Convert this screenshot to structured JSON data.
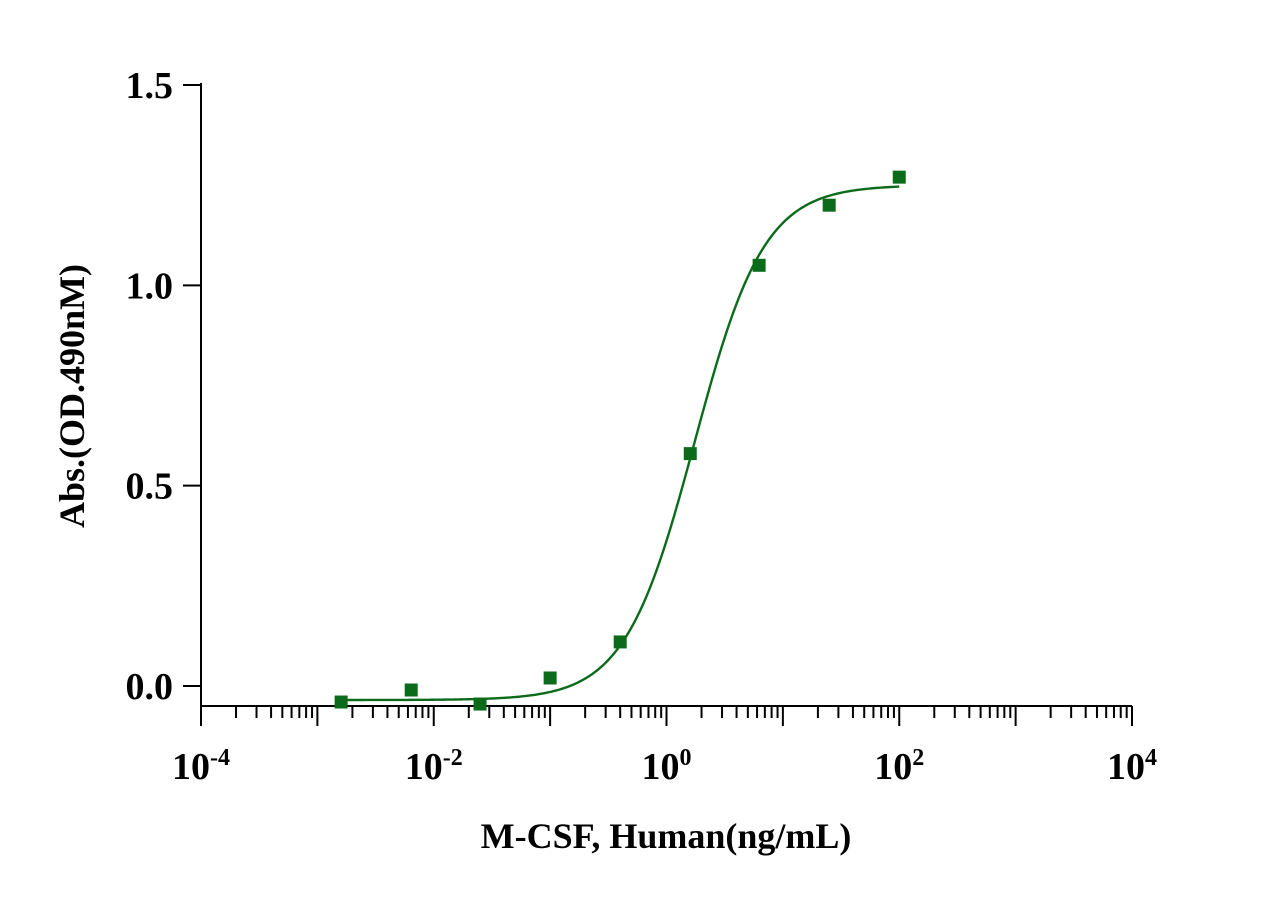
{
  "chart_data": {
    "type": "scatter",
    "xlabel": "M-CSF, Human(ng/mL)",
    "ylabel": "Abs.(OD.490nM)",
    "x_scale": "log10",
    "xlim": [
      0.0001,
      10000
    ],
    "ylim": [
      -0.05,
      1.5
    ],
    "x_ticks": [
      {
        "base": "10",
        "exponent": "-4"
      },
      {
        "base": "10",
        "exponent": "-2"
      },
      {
        "base": "10",
        "exponent": "0"
      },
      {
        "base": "10",
        "exponent": "2"
      },
      {
        "base": "10",
        "exponent": "4"
      }
    ],
    "y_ticks": [
      "0.0",
      "0.5",
      "1.0",
      "1.5"
    ],
    "series": [
      {
        "marker": "square",
        "color": "#0b6b1a",
        "points": [
          {
            "x": 0.0016,
            "y": -0.04
          },
          {
            "x": 0.0064,
            "y": -0.01
          },
          {
            "x": 0.025,
            "y": -0.045
          },
          {
            "x": 0.1,
            "y": 0.02
          },
          {
            "x": 0.4,
            "y": 0.11
          },
          {
            "x": 1.6,
            "y": 0.58
          },
          {
            "x": 6.25,
            "y": 1.05
          },
          {
            "x": 25,
            "y": 1.2
          },
          {
            "x": 100,
            "y": 1.27
          }
        ],
        "fit": {
          "model": "4PL",
          "bottom": -0.035,
          "top": 1.25,
          "ec50": 1.74,
          "hill": 1.45,
          "x_range": [
            0.0016,
            100
          ]
        }
      }
    ],
    "grid": false,
    "legend": "none"
  }
}
